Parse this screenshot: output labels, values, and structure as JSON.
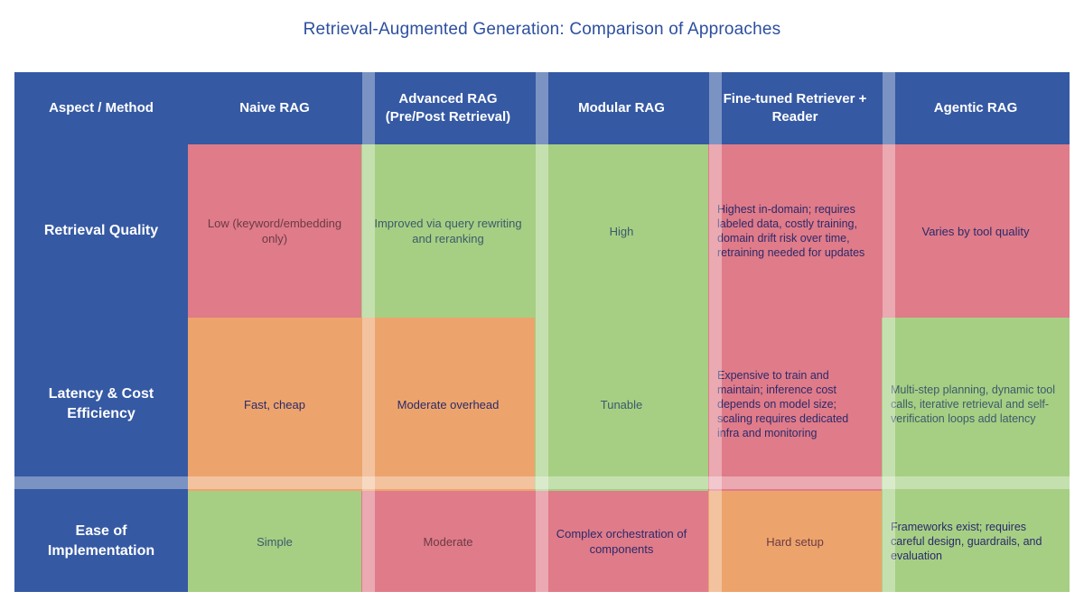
{
  "title": "Retrieval-Augmented Generation: Comparison of Approaches",
  "columns": [
    "Aspect / Method",
    "Naive RAG",
    "Advanced RAG (Pre/Post Retrieval)",
    "Modular RAG",
    "Fine-tuned Retriever + Reader",
    "Agentic RAG"
  ],
  "rows": [
    {
      "label": "Retrieval Quality",
      "cells": [
        {
          "text": "Low (keyword/embedding only)",
          "status": "red"
        },
        {
          "text": "Improved via query rewriting and reranking",
          "status": "green"
        },
        {
          "text": "High",
          "status": "green"
        },
        {
          "text": "Highest in-domain; requires labeled data, costly training, domain drift risk over time, retraining needed for updates",
          "status": "red"
        },
        {
          "text": "Varies by tool quality",
          "status": "red"
        }
      ]
    },
    {
      "label": "Latency & Cost Efficiency",
      "cells": [
        {
          "text": "Fast, cheap",
          "status": "orange"
        },
        {
          "text": "Moderate overhead",
          "status": "orange"
        },
        {
          "text": "Tunable",
          "status": "green"
        },
        {
          "text": "Expensive to train and maintain; inference cost depends on model size; scaling requires dedicated infra and monitoring",
          "status": "red"
        },
        {
          "text": "Multi-step planning, dynamic tool calls, iterative retrieval and self-verification loops add latency",
          "status": "green"
        }
      ]
    },
    {
      "label": "Ease of Implementation",
      "cells": [
        {
          "text": "Simple",
          "status": "green"
        },
        {
          "text": "Moderate",
          "status": "red"
        },
        {
          "text": "Complex orchestration of components",
          "status": "red"
        },
        {
          "text": "Hard setup",
          "status": "orange"
        },
        {
          "text": "Frameworks exist; requires careful design, guardrails, and evaluation",
          "status": "green"
        }
      ]
    }
  ],
  "colors": {
    "header": "#3559a3",
    "bad": "#e07b89",
    "good": "#a6cf84",
    "medium": "#eda46c"
  }
}
